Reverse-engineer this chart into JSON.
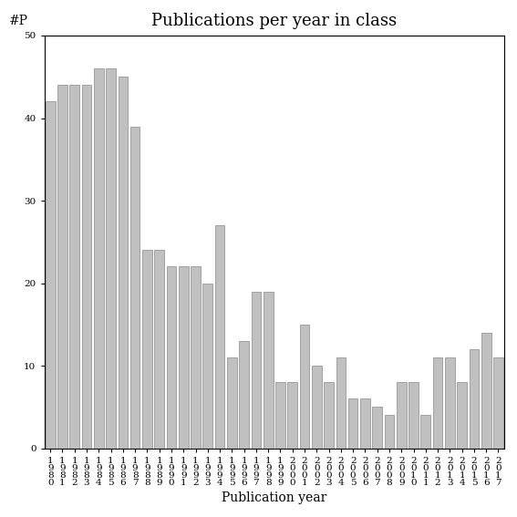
{
  "title": "Publications per year in class",
  "xlabel": "Publication year",
  "ylabel": "#P",
  "years": [
    1980,
    1981,
    1982,
    1983,
    1984,
    1985,
    1986,
    1987,
    1988,
    1989,
    1990,
    1991,
    1992,
    1993,
    1994,
    1995,
    1996,
    1997,
    1998,
    1999,
    2000,
    2001,
    2002,
    2003,
    2004,
    2005,
    2006,
    2007,
    2008,
    2009,
    2010,
    2011,
    2012,
    2013,
    2014,
    2015,
    2016,
    2017
  ],
  "values": [
    42,
    44,
    44,
    44,
    46,
    46,
    45,
    39,
    24,
    24,
    22,
    22,
    22,
    20,
    27,
    11,
    13,
    19,
    19,
    8,
    8,
    15,
    10,
    8,
    11,
    6,
    6,
    5,
    4,
    8,
    8,
    4,
    11,
    11,
    8,
    12,
    14,
    11
  ],
  "bar_color": "#c0c0c0",
  "bar_edge_color": "#888888",
  "ylim": [
    0,
    50
  ],
  "yticks": [
    0,
    10,
    20,
    30,
    40,
    50
  ],
  "background_color": "#ffffff",
  "title_fontsize": 13,
  "axis_fontsize": 10,
  "tick_fontsize": 7.5
}
